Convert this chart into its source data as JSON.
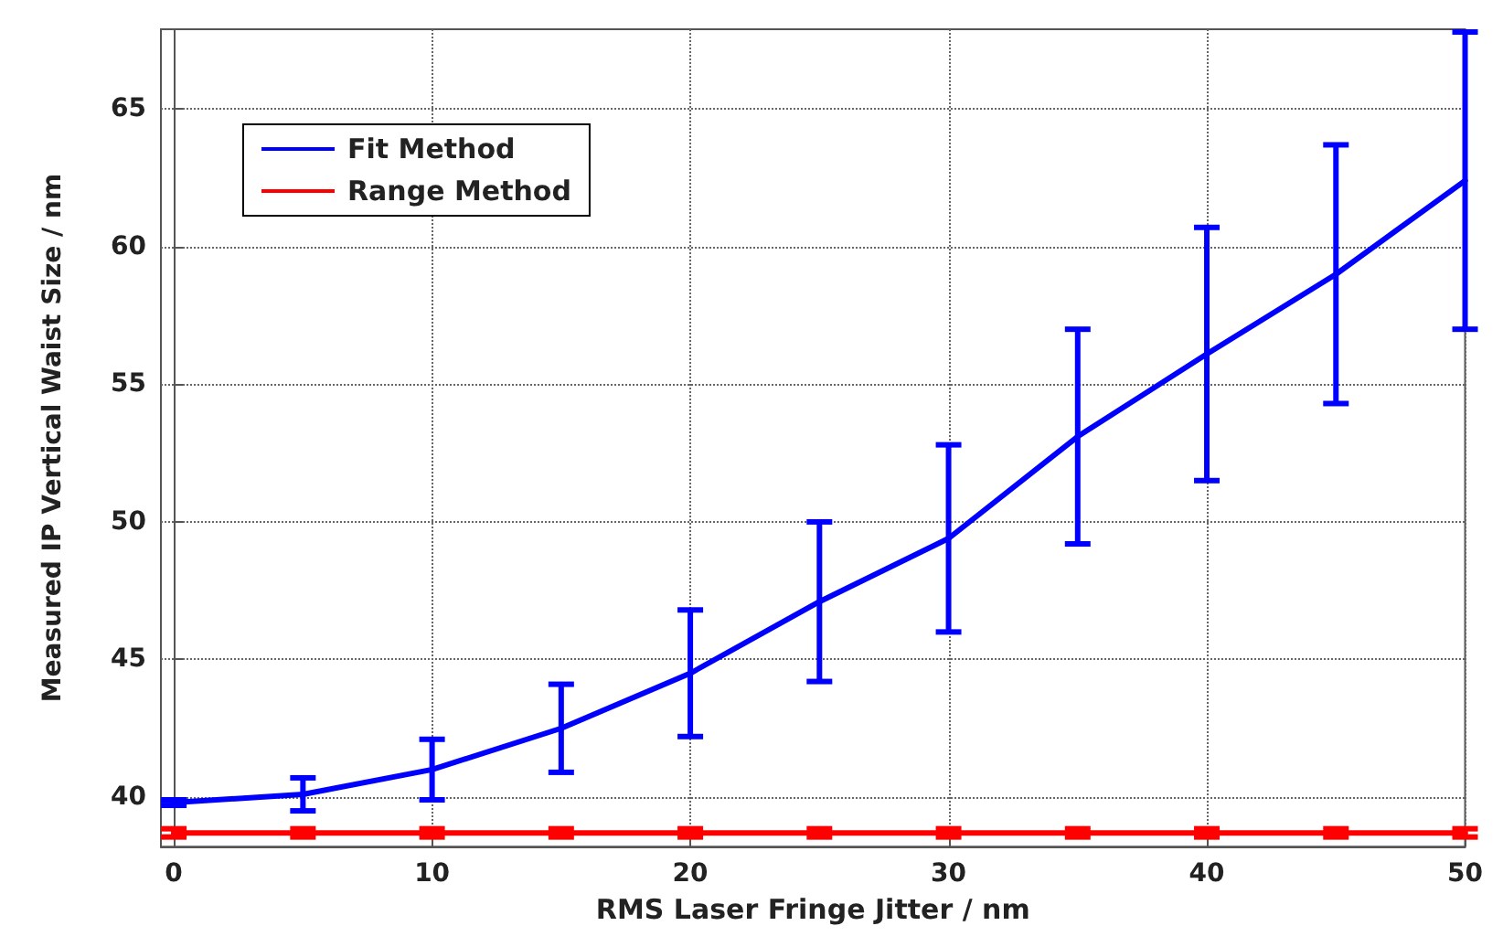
{
  "chart_data": {
    "type": "line",
    "xlabel": "RMS Laser Fringe Jitter / nm",
    "ylabel": "Measured IP Vertical Waist Size / nm",
    "x": [
      0,
      5,
      10,
      15,
      20,
      25,
      30,
      35,
      40,
      45,
      50
    ],
    "series": [
      {
        "name": "Fit Method",
        "color": "#0000ff",
        "values": [
          39.8,
          40.1,
          41.0,
          42.5,
          44.5,
          47.1,
          49.4,
          53.1,
          56.1,
          59.0,
          62.4
        ],
        "errors": [
          0.1,
          0.6,
          1.1,
          1.6,
          2.3,
          2.9,
          3.4,
          3.9,
          4.6,
          4.7,
          5.4
        ]
      },
      {
        "name": "Range Method",
        "color": "#ff0000",
        "values": [
          38.7,
          38.7,
          38.7,
          38.7,
          38.7,
          38.7,
          38.7,
          38.7,
          38.7,
          38.7,
          38.7
        ],
        "errors": [
          0.15,
          0.15,
          0.15,
          0.15,
          0.15,
          0.15,
          0.15,
          0.15,
          0.15,
          0.15,
          0.15
        ]
      }
    ],
    "xlim": [
      -0.5,
      50
    ],
    "xticks": [
      0,
      10,
      20,
      30,
      40,
      50
    ],
    "ylim": [
      38.2,
      67.9
    ],
    "yticks": [
      40,
      45,
      50,
      55,
      60,
      65
    ],
    "grid": true,
    "legend": "top left",
    "marker": "none",
    "line_style": "solid"
  }
}
